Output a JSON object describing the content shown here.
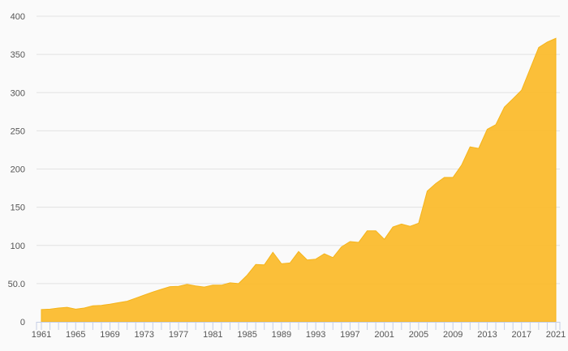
{
  "chart_data": {
    "type": "area",
    "title": "",
    "xlabel": "",
    "ylabel": "",
    "ylim": [
      0,
      400
    ],
    "xlim": [
      1961,
      2021
    ],
    "grid": true,
    "color": "#fbbc2e",
    "y_ticks": [
      "0",
      "50.0",
      "100",
      "150",
      "200",
      "250",
      "300",
      "350",
      "400"
    ],
    "y_tick_values": [
      0,
      50,
      100,
      150,
      200,
      250,
      300,
      350,
      400
    ],
    "x_ticks": [
      "1961",
      "1965",
      "1969",
      "1973",
      "1977",
      "1981",
      "1985",
      "1989",
      "1993",
      "1997",
      "2001",
      "2005",
      "2009",
      "2013",
      "2017",
      "2021"
    ],
    "x": [
      1961,
      1962,
      1963,
      1964,
      1965,
      1966,
      1967,
      1968,
      1969,
      1970,
      1971,
      1972,
      1973,
      1974,
      1975,
      1976,
      1977,
      1978,
      1979,
      1980,
      1981,
      1982,
      1983,
      1984,
      1985,
      1986,
      1987,
      1988,
      1989,
      1990,
      1991,
      1992,
      1993,
      1994,
      1995,
      1996,
      1997,
      1998,
      1999,
      2000,
      2001,
      2002,
      2003,
      2004,
      2005,
      2006,
      2007,
      2008,
      2009,
      2010,
      2011,
      2012,
      2013,
      2014,
      2015,
      2016,
      2017,
      2018,
      2019,
      2020,
      2021
    ],
    "values": [
      16,
      16.5,
      18,
      19,
      16.5,
      18,
      21,
      21.5,
      23,
      25,
      27,
      31,
      35,
      39,
      42.5,
      46,
      46.5,
      49,
      47,
      45.5,
      48,
      48,
      51,
      50,
      61,
      75,
      74.5,
      91,
      76,
      77,
      92,
      81,
      82,
      89,
      84,
      98,
      105,
      104,
      119,
      119,
      108,
      124,
      128,
      125,
      129,
      171,
      181,
      189,
      189,
      205,
      229,
      227,
      252,
      258,
      281,
      292,
      303,
      331,
      359,
      366,
      371
    ]
  }
}
